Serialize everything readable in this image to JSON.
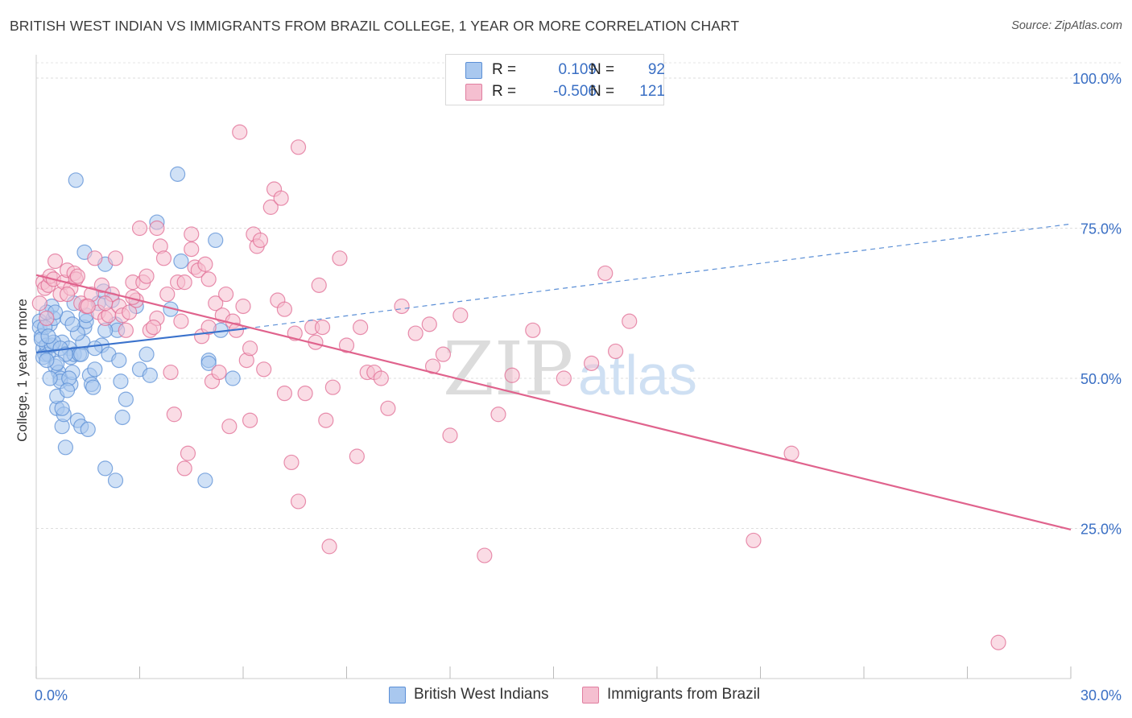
{
  "title": "BRITISH WEST INDIAN VS IMMIGRANTS FROM BRAZIL COLLEGE, 1 YEAR OR MORE CORRELATION CHART",
  "source": "Source: ZipAtlas.com",
  "watermark": {
    "zip": "ZIP",
    "atlas": "atlas"
  },
  "legend_stats": {
    "r_label": "R =",
    "n_label": "N =",
    "series": [
      {
        "r": "0.109",
        "n": "92",
        "fill": "#a9c8ef",
        "stroke": "#5b8fd6"
      },
      {
        "r": "-0.506",
        "n": "121",
        "fill": "#f5bfd0",
        "stroke": "#e07ea0"
      }
    ]
  },
  "chart_data": {
    "type": "scatter",
    "title": "BRITISH WEST INDIAN VS IMMIGRANTS FROM BRAZIL COLLEGE, 1 YEAR OR MORE CORRELATION CHART",
    "xlabel": "",
    "ylabel": "College, 1 year or more",
    "xlim": [
      0,
      30
    ],
    "ylim": [
      0,
      100
    ],
    "x_tick_labels": [
      {
        "value": 0,
        "label": "0.0%"
      },
      {
        "value": 30,
        "label": "30.0%"
      }
    ],
    "y_tick_labels": [
      {
        "value": 25,
        "label": "25.0%"
      },
      {
        "value": 50,
        "label": "50.0%"
      },
      {
        "value": 75,
        "label": "75.0%"
      },
      {
        "value": 100,
        "label": "100.0%"
      }
    ],
    "x_minor_ticks": [
      0,
      3,
      6,
      9,
      12,
      15,
      18,
      21,
      24,
      27,
      30
    ],
    "grid": true,
    "legend_position": "bottom-center",
    "series": [
      {
        "name": "British West Indians",
        "color": "#5b8fd6",
        "fill": "#a9c8ef",
        "trend": {
          "x0": 0,
          "y0": 54.3,
          "x1": 6.1,
          "y1": 58.3,
          "dash_to_x": 30,
          "dash_to_y": 75.7
        },
        "points": [
          [
            0.1,
            59.5
          ],
          [
            0.1,
            58.5
          ],
          [
            0.15,
            57
          ],
          [
            0.2,
            55
          ],
          [
            0.25,
            54
          ],
          [
            0.3,
            55.5
          ],
          [
            0.35,
            54
          ],
          [
            0.4,
            59
          ],
          [
            0.45,
            62
          ],
          [
            0.5,
            60
          ],
          [
            0.55,
            52
          ],
          [
            0.6,
            45
          ],
          [
            0.6,
            47
          ],
          [
            0.65,
            51
          ],
          [
            0.7,
            50
          ],
          [
            0.7,
            49.5
          ],
          [
            0.75,
            42
          ],
          [
            0.75,
            56
          ],
          [
            0.8,
            44
          ],
          [
            0.85,
            38.5
          ],
          [
            0.9,
            60
          ],
          [
            0.95,
            55
          ],
          [
            1.0,
            53.5
          ],
          [
            1.0,
            49
          ],
          [
            1.05,
            51
          ],
          [
            1.1,
            54
          ],
          [
            1.1,
            62.5
          ],
          [
            1.15,
            83
          ],
          [
            1.2,
            43
          ],
          [
            1.25,
            54
          ],
          [
            1.3,
            42
          ],
          [
            1.35,
            56
          ],
          [
            1.4,
            58.5
          ],
          [
            1.4,
            71
          ],
          [
            1.45,
            59.5
          ],
          [
            1.5,
            41.5
          ],
          [
            1.55,
            50.5
          ],
          [
            1.6,
            49
          ],
          [
            1.65,
            48.5
          ],
          [
            1.7,
            51.5
          ],
          [
            1.8,
            62.5
          ],
          [
            1.9,
            55.5
          ],
          [
            1.95,
            64.5
          ],
          [
            2.0,
            35
          ],
          [
            2.0,
            69
          ],
          [
            2.1,
            54
          ],
          [
            2.2,
            63
          ],
          [
            2.3,
            33
          ],
          [
            2.3,
            59
          ],
          [
            2.35,
            58
          ],
          [
            2.4,
            53
          ],
          [
            2.45,
            49.5
          ],
          [
            2.5,
            43.5
          ],
          [
            2.6,
            46.5
          ],
          [
            2.9,
            62
          ],
          [
            3.0,
            51.5
          ],
          [
            3.2,
            54
          ],
          [
            3.3,
            50.5
          ],
          [
            3.5,
            76
          ],
          [
            3.9,
            61.5
          ],
          [
            4.1,
            84
          ],
          [
            4.2,
            69.5
          ],
          [
            4.9,
            33
          ],
          [
            5.0,
            53
          ],
          [
            5.0,
            52.5
          ],
          [
            5.2,
            73
          ],
          [
            5.35,
            58
          ],
          [
            5.7,
            50
          ],
          [
            0.2,
            53.5
          ],
          [
            0.3,
            61
          ],
          [
            0.45,
            55.5
          ],
          [
            0.5,
            56
          ],
          [
            0.7,
            55
          ],
          [
            0.95,
            50
          ],
          [
            1.2,
            57.5
          ],
          [
            0.15,
            56.5
          ],
          [
            0.25,
            58.5
          ],
          [
            0.4,
            50
          ],
          [
            0.55,
            61
          ],
          [
            0.85,
            54
          ],
          [
            1.05,
            59
          ],
          [
            1.3,
            54
          ],
          [
            1.45,
            60.5
          ],
          [
            0.6,
            52.5
          ],
          [
            0.35,
            57
          ],
          [
            0.9,
            48
          ],
          [
            0.75,
            45
          ],
          [
            1.7,
            55
          ],
          [
            2.0,
            58
          ],
          [
            0.3,
            53
          ]
        ]
      },
      {
        "name": "Immigrants from Brazil",
        "color": "#e06b93",
        "fill": "#f5bfd0",
        "trend": {
          "x0": 0,
          "y0": 67.2,
          "x1": 30,
          "y1": 24.8
        },
        "points": [
          [
            0.1,
            62.5
          ],
          [
            0.2,
            66
          ],
          [
            0.25,
            65
          ],
          [
            0.3,
            60
          ],
          [
            0.35,
            65.5
          ],
          [
            0.4,
            67
          ],
          [
            0.5,
            66.5
          ],
          [
            0.55,
            69.5
          ],
          [
            0.7,
            64
          ],
          [
            0.8,
            66
          ],
          [
            0.9,
            68
          ],
          [
            1.0,
            65
          ],
          [
            1.1,
            67.5
          ],
          [
            1.15,
            66.5
          ],
          [
            1.2,
            67
          ],
          [
            1.3,
            62.5
          ],
          [
            1.45,
            62
          ],
          [
            1.6,
            64
          ],
          [
            1.7,
            70
          ],
          [
            1.8,
            61
          ],
          [
            1.9,
            65.5
          ],
          [
            2.0,
            60
          ],
          [
            2.1,
            60.5
          ],
          [
            2.2,
            64
          ],
          [
            2.3,
            70
          ],
          [
            2.4,
            62
          ],
          [
            2.5,
            60.5
          ],
          [
            2.6,
            58
          ],
          [
            2.7,
            61
          ],
          [
            2.8,
            66
          ],
          [
            2.9,
            63
          ],
          [
            3.0,
            75
          ],
          [
            3.1,
            66
          ],
          [
            3.2,
            67
          ],
          [
            3.3,
            58
          ],
          [
            3.5,
            75
          ],
          [
            3.6,
            72
          ],
          [
            3.7,
            70
          ],
          [
            3.8,
            64
          ],
          [
            3.9,
            51
          ],
          [
            4.0,
            44
          ],
          [
            4.1,
            66
          ],
          [
            4.2,
            59.5
          ],
          [
            4.3,
            35
          ],
          [
            4.4,
            37.5
          ],
          [
            4.5,
            74
          ],
          [
            4.5,
            71.5
          ],
          [
            4.6,
            68.5
          ],
          [
            4.7,
            68
          ],
          [
            4.8,
            57
          ],
          [
            4.9,
            69
          ],
          [
            5.0,
            66.5
          ],
          [
            5.1,
            49.5
          ],
          [
            5.2,
            62.5
          ],
          [
            5.3,
            51
          ],
          [
            5.4,
            60.5
          ],
          [
            5.5,
            64
          ],
          [
            5.6,
            42
          ],
          [
            5.7,
            59.5
          ],
          [
            5.8,
            58
          ],
          [
            5.9,
            91
          ],
          [
            6.0,
            62
          ],
          [
            6.1,
            53
          ],
          [
            6.2,
            43
          ],
          [
            6.3,
            74
          ],
          [
            6.4,
            72
          ],
          [
            6.5,
            73
          ],
          [
            6.6,
            51.5
          ],
          [
            6.8,
            78.5
          ],
          [
            6.9,
            81.5
          ],
          [
            7.0,
            63
          ],
          [
            7.1,
            80
          ],
          [
            7.2,
            61.5
          ],
          [
            7.4,
            36
          ],
          [
            7.5,
            57.5
          ],
          [
            7.6,
            88.5
          ],
          [
            7.8,
            47.5
          ],
          [
            8.0,
            58.5
          ],
          [
            8.2,
            65.5
          ],
          [
            8.3,
            58.5
          ],
          [
            8.4,
            43
          ],
          [
            8.6,
            48.5
          ],
          [
            8.8,
            70
          ],
          [
            9.0,
            55.5
          ],
          [
            9.4,
            58.5
          ],
          [
            9.6,
            51
          ],
          [
            9.8,
            51
          ],
          [
            10.0,
            50
          ],
          [
            10.2,
            45
          ],
          [
            10.6,
            62
          ],
          [
            11.0,
            57.5
          ],
          [
            11.4,
            59
          ],
          [
            11.5,
            52
          ],
          [
            11.8,
            54
          ],
          [
            12.0,
            40.5
          ],
          [
            12.3,
            60.5
          ],
          [
            13.0,
            20.5
          ],
          [
            13.4,
            44
          ],
          [
            13.8,
            50.5
          ],
          [
            14.4,
            58
          ],
          [
            15.3,
            50
          ],
          [
            16.1,
            52.5
          ],
          [
            16.5,
            67.5
          ],
          [
            16.8,
            54.5
          ],
          [
            17.2,
            59.5
          ],
          [
            20.8,
            23
          ],
          [
            21.9,
            37.5
          ],
          [
            27.9,
            6
          ],
          [
            2.0,
            62.5
          ],
          [
            3.5,
            60
          ],
          [
            1.5,
            62
          ],
          [
            0.9,
            64
          ],
          [
            2.8,
            63.5
          ],
          [
            4.3,
            66
          ],
          [
            5.0,
            58.5
          ],
          [
            6.2,
            55
          ],
          [
            7.2,
            47.5
          ],
          [
            8.1,
            56
          ],
          [
            9.3,
            37
          ],
          [
            3.4,
            58.5
          ],
          [
            7.6,
            29.5
          ],
          [
            8.5,
            22
          ]
        ]
      }
    ]
  }
}
